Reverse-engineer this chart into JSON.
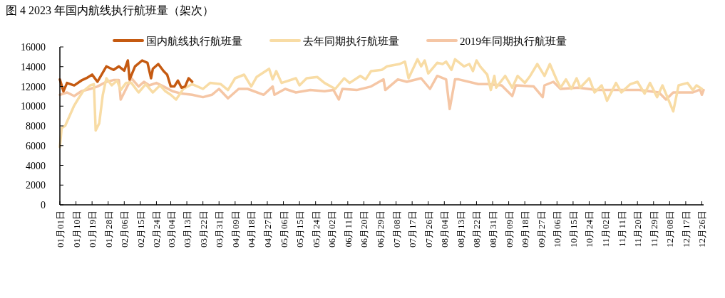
{
  "chart_data": {
    "type": "line",
    "title": "图 4 2023 年国内航线执行航班量（架次）",
    "xlim": [
      "--01-01",
      "--12-27"
    ],
    "ylim": [
      0,
      16000
    ],
    "yticks": [
      0,
      2000,
      4000,
      6000,
      8000,
      10000,
      12000,
      14000,
      16000
    ],
    "xticks": [
      {
        "value": "--01-01",
        "label": "01月01日"
      },
      {
        "value": "--01-10",
        "label": "01月10日"
      },
      {
        "value": "--01-19",
        "label": "01月19日"
      },
      {
        "value": "--01-28",
        "label": "01月28日"
      },
      {
        "value": "--02-06",
        "label": "02月06日"
      },
      {
        "value": "--02-15",
        "label": "02月15日"
      },
      {
        "value": "--02-24",
        "label": "02月24日"
      },
      {
        "value": "--03-04",
        "label": "03月04日"
      },
      {
        "value": "--03-13",
        "label": "03月13日"
      },
      {
        "value": "--03-22",
        "label": "03月22日"
      },
      {
        "value": "--03-31",
        "label": "03月31日"
      },
      {
        "value": "--04-09",
        "label": "04月09日"
      },
      {
        "value": "--04-18",
        "label": "04月18日"
      },
      {
        "value": "--04-27",
        "label": "04月27日"
      },
      {
        "value": "--05-06",
        "label": "05月06日"
      },
      {
        "value": "--05-15",
        "label": "05月15日"
      },
      {
        "value": "--05-24",
        "label": "05月24日"
      },
      {
        "value": "--06-02",
        "label": "06月02日"
      },
      {
        "value": "--06-11",
        "label": "06月11日"
      },
      {
        "value": "--06-20",
        "label": "06月20日"
      },
      {
        "value": "--06-29",
        "label": "06月29日"
      },
      {
        "value": "--07-08",
        "label": "07月08日"
      },
      {
        "value": "--07-17",
        "label": "07月17日"
      },
      {
        "value": "--07-26",
        "label": "07月26日"
      },
      {
        "value": "--08-04",
        "label": "08月04日"
      },
      {
        "value": "--08-13",
        "label": "08月13日"
      },
      {
        "value": "--08-22",
        "label": "08月22日"
      },
      {
        "value": "--08-31",
        "label": "08月31日"
      },
      {
        "value": "--09-09",
        "label": "09月09日"
      },
      {
        "value": "--09-18",
        "label": "09月18日"
      },
      {
        "value": "--09-27",
        "label": "09月27日"
      },
      {
        "value": "--10-06",
        "label": "10月06日"
      },
      {
        "value": "--10-15",
        "label": "10月15日"
      },
      {
        "value": "--10-24",
        "label": "10月24日"
      },
      {
        "value": "--11-02",
        "label": "11月02日"
      },
      {
        "value": "--11-11",
        "label": "11月11日"
      },
      {
        "value": "--11-20",
        "label": "11月20日"
      },
      {
        "value": "--11-29",
        "label": "11月29日"
      },
      {
        "value": "--12-08",
        "label": "12月08日"
      },
      {
        "value": "--12-17",
        "label": "12月17日"
      },
      {
        "value": "--12-26",
        "label": "12月26日"
      }
    ],
    "legend": "top",
    "grid": false,
    "marker": "none",
    "line_style": "solid",
    "series": [
      {
        "name": "国内航线执行航班量",
        "color": "#c55a11",
        "x": [
          "--01-01",
          "--01-03",
          "--01-05",
          "--01-09",
          "--01-13",
          "--01-16",
          "--01-19",
          "--01-22",
          "--01-27",
          "--01-31",
          "--02-03",
          "--02-06",
          "--02-08",
          "--02-09",
          "--02-12",
          "--02-16",
          "--02-19",
          "--02-21",
          "--02-22",
          "--02-25",
          "--02-28",
          "--03-02",
          "--03-04",
          "--03-06",
          "--03-08",
          "--03-10",
          "--03-12",
          "--03-14",
          "--03-16"
        ],
        "values": [
          12700,
          11500,
          12350,
          12100,
          12600,
          12850,
          13200,
          12470,
          14030,
          13670,
          14030,
          13600,
          14630,
          12700,
          14030,
          14630,
          14390,
          12830,
          13790,
          14270,
          13550,
          13190,
          11990,
          11990,
          12590,
          11870,
          11990,
          12830,
          12470
        ]
      },
      {
        "name": "去年同期执行航班量",
        "color": "#f8dca5",
        "x": [
          "--01-01",
          "--01-02",
          "--01-04",
          "--01-09",
          "--01-11",
          "--01-14",
          "--01-18",
          "--01-20",
          "--01-21",
          "--01-23",
          "--01-25",
          "--01-27",
          "--01-30",
          "--02-02",
          "--02-04",
          "--02-07",
          "--02-10",
          "--02-14",
          "--02-18",
          "--02-22",
          "--02-26",
          "--03-01",
          "--03-04",
          "--03-07",
          "--03-11",
          "--03-16",
          "--03-22",
          "--03-26",
          "--04-01",
          "--04-05",
          "--04-09",
          "--04-14",
          "--04-18",
          "--04-21",
          "--04-28",
          "--04-30",
          "--05-02",
          "--05-05",
          "--05-13",
          "--05-15",
          "--05-19",
          "--05-25",
          "--05-29",
          "--06-04",
          "--06-09",
          "--06-12",
          "--06-18",
          "--06-21",
          "--06-24",
          "--06-30",
          "--07-03",
          "--07-10",
          "--07-13",
          "--07-15",
          "--07-20",
          "--07-22",
          "--07-24",
          "--07-26",
          "--07-31",
          "--08-03",
          "--08-05",
          "--08-08",
          "--08-10",
          "--08-15",
          "--08-18",
          "--08-20",
          "--08-22",
          "--08-24",
          "--08-28",
          "--08-30",
          "--09-01",
          "--09-02",
          "--09-07",
          "--09-11",
          "--09-14",
          "--09-18",
          "--09-21",
          "--09-25",
          "--09-29",
          "--10-02",
          "--10-06",
          "--10-08",
          "--10-11",
          "--10-14",
          "--10-17",
          "--10-19",
          "--10-24",
          "--10-27",
          "--10-31",
          "--11-03",
          "--11-08",
          "--11-11",
          "--11-16",
          "--11-20",
          "--11-24",
          "--11-27",
          "--12-01",
          "--12-04",
          "--12-10",
          "--12-13",
          "--12-18",
          "--12-21",
          "--12-23",
          "--12-26"
        ],
        "values": [
          5860,
          7780,
          8020,
          10070,
          10670,
          11510,
          12110,
          12230,
          7540,
          8260,
          11150,
          12830,
          12110,
          12590,
          11630,
          12350,
          12350,
          11390,
          12230,
          11390,
          12110,
          11510,
          11150,
          10670,
          11750,
          12230,
          11750,
          12350,
          12230,
          11630,
          12830,
          13190,
          11990,
          12950,
          13790,
          12710,
          13550,
          12350,
          12830,
          12110,
          12830,
          12950,
          12350,
          11750,
          12830,
          12350,
          13070,
          12710,
          13550,
          13670,
          14030,
          14270,
          14510,
          12830,
          14750,
          14030,
          14630,
          13310,
          14390,
          14270,
          14510,
          13670,
          14750,
          14030,
          14270,
          13550,
          14630,
          14030,
          13190,
          11630,
          13070,
          11870,
          13070,
          11870,
          13070,
          12350,
          13070,
          14270,
          13070,
          14270,
          12590,
          11870,
          12710,
          11750,
          12830,
          11870,
          12830,
          11390,
          12110,
          10550,
          12350,
          11390,
          12230,
          12470,
          11270,
          12350,
          10910,
          12110,
          9460,
          12110,
          12350,
          11630,
          12110,
          11750
        ]
      },
      {
        "name": "2019年同期执行航班量",
        "color": "#f5c6a5",
        "x": [
          "--01-01",
          "--01-05",
          "--01-09",
          "--01-13",
          "--01-18",
          "--01-22",
          "--01-27",
          "--01-31",
          "--02-03",
          "--02-04",
          "--02-06",
          "--02-10",
          "--02-14",
          "--02-17",
          "--02-20",
          "--02-24",
          "--02-28",
          "--03-05",
          "--03-10",
          "--03-16",
          "--03-22",
          "--03-27",
          "--03-31",
          "--04-05",
          "--04-11",
          "--04-16",
          "--04-25",
          "--04-30",
          "--05-01",
          "--05-07",
          "--05-13",
          "--05-21",
          "--05-29",
          "--06-03",
          "--06-06",
          "--06-08",
          "--06-16",
          "--06-24",
          "--07-01",
          "--07-02",
          "--07-09",
          "--07-14",
          "--07-22",
          "--07-27",
          "--07-31",
          "--08-05",
          "--08-07",
          "--08-10",
          "--08-12",
          "--08-23",
          "--08-28",
          "--09-05",
          "--09-11",
          "--09-13",
          "--09-23",
          "--09-28",
          "--09-29",
          "--10-04",
          "--10-08",
          "--10-18",
          "--10-28",
          "--11-11",
          "--11-21",
          "--12-02",
          "--12-06",
          "--12-10",
          "--12-21",
          "--12-25",
          "--12-26",
          "--12-27"
        ],
        "values": [
          11150,
          11390,
          11030,
          11510,
          11750,
          11990,
          12470,
          12640,
          12640,
          10670,
          11390,
          12830,
          11990,
          12470,
          12110,
          12350,
          11990,
          11510,
          11270,
          11150,
          10910,
          11150,
          11750,
          10790,
          11750,
          11750,
          11150,
          11990,
          11150,
          11750,
          11390,
          11630,
          11510,
          11630,
          10670,
          11750,
          11630,
          11990,
          12710,
          11630,
          12710,
          12470,
          12830,
          11750,
          13070,
          12710,
          9710,
          12710,
          12710,
          12230,
          12230,
          12110,
          11030,
          12110,
          11990,
          10910,
          12110,
          12470,
          11750,
          11870,
          11630,
          11630,
          11630,
          11390,
          10670,
          11390,
          11390,
          11680,
          11150,
          11630
        ]
      }
    ]
  }
}
